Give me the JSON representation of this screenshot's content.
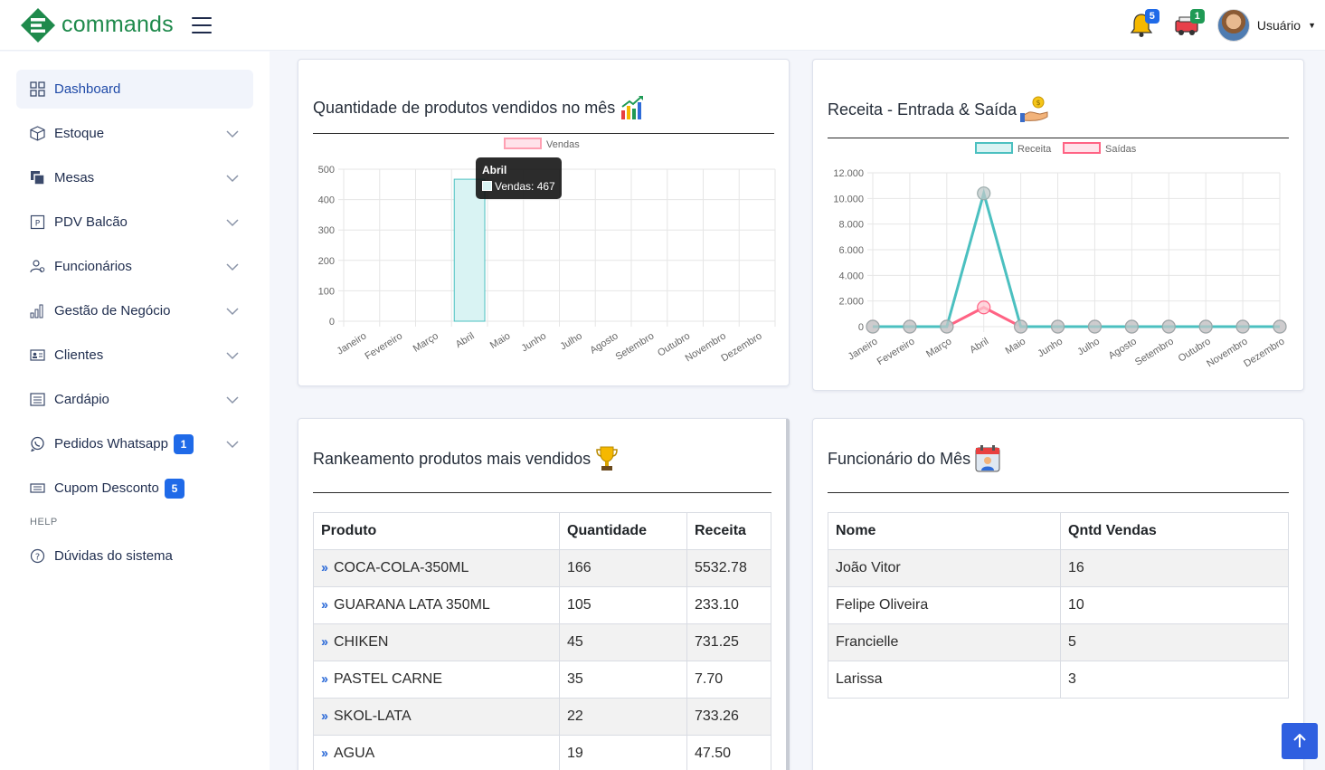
{
  "header": {
    "logo_text": "commands",
    "notifications_count": "5",
    "orders_count": "1",
    "user_name": "Usuário"
  },
  "sidebar": {
    "items": [
      {
        "label": "Dashboard",
        "icon": "dashboard-icon",
        "active": true
      },
      {
        "label": "Estoque",
        "icon": "box-icon"
      },
      {
        "label": "Mesas",
        "icon": "tables-icon"
      },
      {
        "label": "PDV Balcão",
        "icon": "pdv-icon"
      },
      {
        "label": "Funcionários",
        "icon": "users-icon"
      },
      {
        "label": "Gestão de Negócio",
        "icon": "bar-chart-icon"
      },
      {
        "label": "Clientes",
        "icon": "id-card-icon"
      },
      {
        "label": "Cardápio",
        "icon": "menu-icon"
      },
      {
        "label": "Pedidos Whatsapp",
        "icon": "whatsapp-icon",
        "badge": "1"
      },
      {
        "label": "Cupom Desconto",
        "icon": "coupon-icon",
        "badge": "5"
      }
    ],
    "section_help": "HELP",
    "help_item": {
      "label": "Dúvidas do sistema",
      "icon": "question-icon"
    }
  },
  "cards": {
    "sales_chart_title": "Quantidade de produtos vendidos no mês",
    "revenue_chart_title": "Receita - Entrada & Saída",
    "ranking_title": "Rankeamento produtos mais vendidos",
    "employee_title": "Funcionário do Mês"
  },
  "chart_data": [
    {
      "type": "bar",
      "categories": [
        "Janeiro",
        "Fevereiro",
        "Março",
        "Abril",
        "Maio",
        "Junho",
        "Julho",
        "Agosto",
        "Setembro",
        "Outubro",
        "Novembro",
        "Dezembro"
      ],
      "series": [
        {
          "name": "Vendas",
          "values": [
            0,
            0,
            0,
            467,
            0,
            0,
            0,
            0,
            0,
            0,
            0,
            0
          ],
          "color": "#d9f3f3",
          "border": "#4bc0c0"
        }
      ],
      "ylim": [
        0,
        500
      ],
      "yticks": [
        0,
        100,
        200,
        300,
        400,
        500
      ],
      "legend_placement": "top",
      "grid": true,
      "tooltip": {
        "title": "Abril",
        "label": "Vendas: 467"
      }
    },
    {
      "type": "line",
      "categories": [
        "Janeiro",
        "Fevereiro",
        "Março",
        "Abril",
        "Maio",
        "Junho",
        "Julho",
        "Agosto",
        "Setembro",
        "Outubro",
        "Novembro",
        "Dezembro"
      ],
      "series": [
        {
          "name": "Receita",
          "values": [
            0,
            0,
            0,
            10400,
            0,
            0,
            0,
            0,
            0,
            0,
            0,
            0
          ],
          "color": "#4bc0c0"
        },
        {
          "name": "Saídas",
          "values": [
            0,
            0,
            0,
            1500,
            0,
            0,
            0,
            0,
            0,
            0,
            0,
            0
          ],
          "color": "#ff6384"
        }
      ],
      "ylim": [
        0,
        12000
      ],
      "yticks": [
        "0",
        "2.000",
        "4.000",
        "6.000",
        "8.000",
        "10.000",
        "12.000"
      ],
      "legend_placement": "top",
      "grid": true
    }
  ],
  "ranking_table": {
    "headers": [
      "Produto",
      "Quantidade",
      "Receita"
    ],
    "rows": [
      [
        "COCA-COLA-350ML",
        "166",
        "5532.78"
      ],
      [
        "GUARANA LATA 350ML",
        "105",
        "233.10"
      ],
      [
        "CHIKEN",
        "45",
        "731.25"
      ],
      [
        "PASTEL CARNE",
        "35",
        "7.70"
      ],
      [
        "SKOL-LATA",
        "22",
        "733.26"
      ],
      [
        "AGUA",
        "19",
        "47.50"
      ]
    ]
  },
  "employee_table": {
    "headers": [
      "Nome",
      "Qntd Vendas"
    ],
    "rows": [
      [
        "João Vitor",
        "16"
      ],
      [
        "Felipe Oliveira",
        "10"
      ],
      [
        "Francielle",
        "5"
      ],
      [
        "Larissa",
        "3"
      ]
    ]
  }
}
